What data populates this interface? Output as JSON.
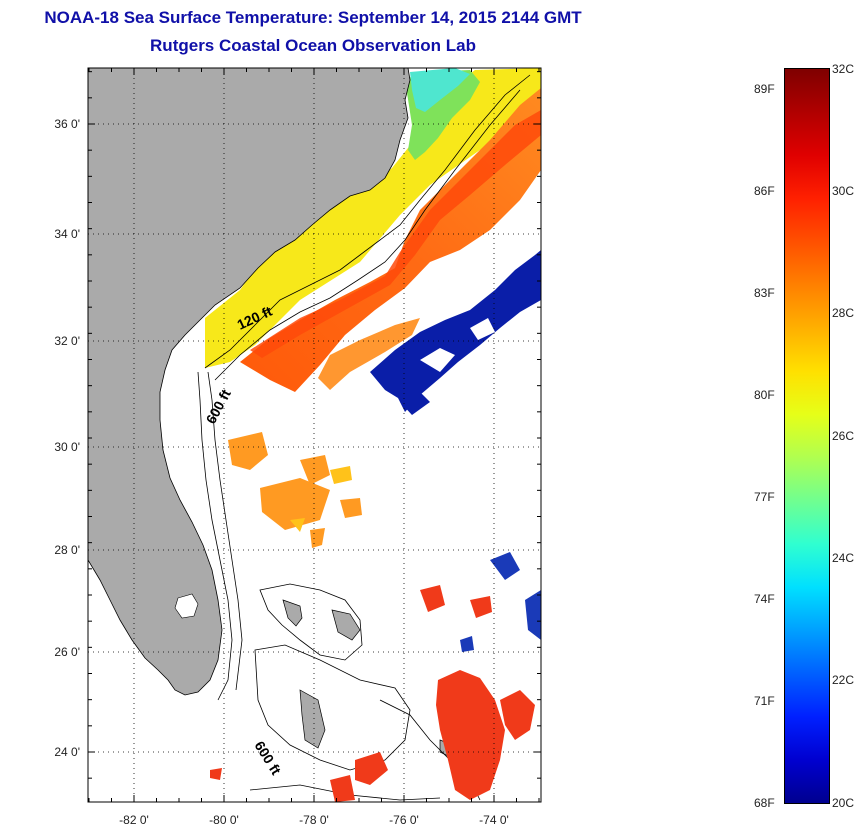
{
  "header": {
    "title": "NOAA-18 Sea Surface Temperature:  September 14, 2015 2144 GMT",
    "subtitle": "Rutgers Coastal Ocean Observation Lab"
  },
  "map": {
    "y_ticks": [
      "36 0'",
      "34 0'",
      "32 0'",
      "30 0'",
      "28 0'",
      "26 0'",
      "24 0'"
    ],
    "x_ticks": [
      "-82 0'",
      "-80 0'",
      "-78 0'",
      "-76 0'",
      "-74 0'"
    ],
    "contours": [
      "120 ft",
      "600 ft",
      "600 ft"
    ]
  },
  "colorbar": {
    "celsius": [
      "32C",
      "30C",
      "28C",
      "26C",
      "24C",
      "22C",
      "20C"
    ],
    "fahrenheit": [
      "89F",
      "86F",
      "83F",
      "80F",
      "77F",
      "74F",
      "71F",
      "68F"
    ],
    "range_c": [
      20,
      32
    ]
  }
}
